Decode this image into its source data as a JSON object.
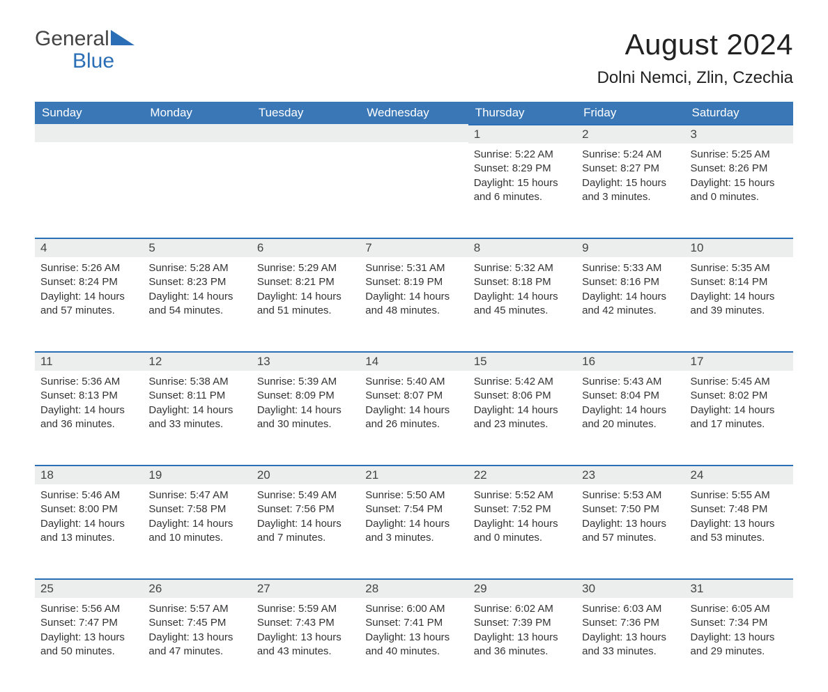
{
  "brand": {
    "line1": "General",
    "line2": "Blue",
    "text_color": "#444444",
    "accent_color": "#2a6fb5"
  },
  "title": "August 2024",
  "location": "Dolni Nemci, Zlin, Czechia",
  "colors": {
    "header_bg": "#3a77b7",
    "header_text": "#ffffff",
    "daynum_bg": "#eceded",
    "daynum_border": "#2a6fb5",
    "body_bg": "#ffffff",
    "text": "#333333"
  },
  "fonts": {
    "title_size_pt": 32,
    "location_size_pt": 18,
    "dayheader_size_pt": 13,
    "cell_size_pt": 11
  },
  "day_headers": [
    "Sunday",
    "Monday",
    "Tuesday",
    "Wednesday",
    "Thursday",
    "Friday",
    "Saturday"
  ],
  "weeks": [
    [
      null,
      null,
      null,
      null,
      {
        "n": "1",
        "sunrise": "5:22 AM",
        "sunset": "8:29 PM",
        "daylight": "15 hours and 6 minutes."
      },
      {
        "n": "2",
        "sunrise": "5:24 AM",
        "sunset": "8:27 PM",
        "daylight": "15 hours and 3 minutes."
      },
      {
        "n": "3",
        "sunrise": "5:25 AM",
        "sunset": "8:26 PM",
        "daylight": "15 hours and 0 minutes."
      }
    ],
    [
      {
        "n": "4",
        "sunrise": "5:26 AM",
        "sunset": "8:24 PM",
        "daylight": "14 hours and 57 minutes."
      },
      {
        "n": "5",
        "sunrise": "5:28 AM",
        "sunset": "8:23 PM",
        "daylight": "14 hours and 54 minutes."
      },
      {
        "n": "6",
        "sunrise": "5:29 AM",
        "sunset": "8:21 PM",
        "daylight": "14 hours and 51 minutes."
      },
      {
        "n": "7",
        "sunrise": "5:31 AM",
        "sunset": "8:19 PM",
        "daylight": "14 hours and 48 minutes."
      },
      {
        "n": "8",
        "sunrise": "5:32 AM",
        "sunset": "8:18 PM",
        "daylight": "14 hours and 45 minutes."
      },
      {
        "n": "9",
        "sunrise": "5:33 AM",
        "sunset": "8:16 PM",
        "daylight": "14 hours and 42 minutes."
      },
      {
        "n": "10",
        "sunrise": "5:35 AM",
        "sunset": "8:14 PM",
        "daylight": "14 hours and 39 minutes."
      }
    ],
    [
      {
        "n": "11",
        "sunrise": "5:36 AM",
        "sunset": "8:13 PM",
        "daylight": "14 hours and 36 minutes."
      },
      {
        "n": "12",
        "sunrise": "5:38 AM",
        "sunset": "8:11 PM",
        "daylight": "14 hours and 33 minutes."
      },
      {
        "n": "13",
        "sunrise": "5:39 AM",
        "sunset": "8:09 PM",
        "daylight": "14 hours and 30 minutes."
      },
      {
        "n": "14",
        "sunrise": "5:40 AM",
        "sunset": "8:07 PM",
        "daylight": "14 hours and 26 minutes."
      },
      {
        "n": "15",
        "sunrise": "5:42 AM",
        "sunset": "8:06 PM",
        "daylight": "14 hours and 23 minutes."
      },
      {
        "n": "16",
        "sunrise": "5:43 AM",
        "sunset": "8:04 PM",
        "daylight": "14 hours and 20 minutes."
      },
      {
        "n": "17",
        "sunrise": "5:45 AM",
        "sunset": "8:02 PM",
        "daylight": "14 hours and 17 minutes."
      }
    ],
    [
      {
        "n": "18",
        "sunrise": "5:46 AM",
        "sunset": "8:00 PM",
        "daylight": "14 hours and 13 minutes."
      },
      {
        "n": "19",
        "sunrise": "5:47 AM",
        "sunset": "7:58 PM",
        "daylight": "14 hours and 10 minutes."
      },
      {
        "n": "20",
        "sunrise": "5:49 AM",
        "sunset": "7:56 PM",
        "daylight": "14 hours and 7 minutes."
      },
      {
        "n": "21",
        "sunrise": "5:50 AM",
        "sunset": "7:54 PM",
        "daylight": "14 hours and 3 minutes."
      },
      {
        "n": "22",
        "sunrise": "5:52 AM",
        "sunset": "7:52 PM",
        "daylight": "14 hours and 0 minutes."
      },
      {
        "n": "23",
        "sunrise": "5:53 AM",
        "sunset": "7:50 PM",
        "daylight": "13 hours and 57 minutes."
      },
      {
        "n": "24",
        "sunrise": "5:55 AM",
        "sunset": "7:48 PM",
        "daylight": "13 hours and 53 minutes."
      }
    ],
    [
      {
        "n": "25",
        "sunrise": "5:56 AM",
        "sunset": "7:47 PM",
        "daylight": "13 hours and 50 minutes."
      },
      {
        "n": "26",
        "sunrise": "5:57 AM",
        "sunset": "7:45 PM",
        "daylight": "13 hours and 47 minutes."
      },
      {
        "n": "27",
        "sunrise": "5:59 AM",
        "sunset": "7:43 PM",
        "daylight": "13 hours and 43 minutes."
      },
      {
        "n": "28",
        "sunrise": "6:00 AM",
        "sunset": "7:41 PM",
        "daylight": "13 hours and 40 minutes."
      },
      {
        "n": "29",
        "sunrise": "6:02 AM",
        "sunset": "7:39 PM",
        "daylight": "13 hours and 36 minutes."
      },
      {
        "n": "30",
        "sunrise": "6:03 AM",
        "sunset": "7:36 PM",
        "daylight": "13 hours and 33 minutes."
      },
      {
        "n": "31",
        "sunrise": "6:05 AM",
        "sunset": "7:34 PM",
        "daylight": "13 hours and 29 minutes."
      }
    ]
  ],
  "labels": {
    "sunrise": "Sunrise:",
    "sunset": "Sunset:",
    "daylight": "Daylight:"
  }
}
